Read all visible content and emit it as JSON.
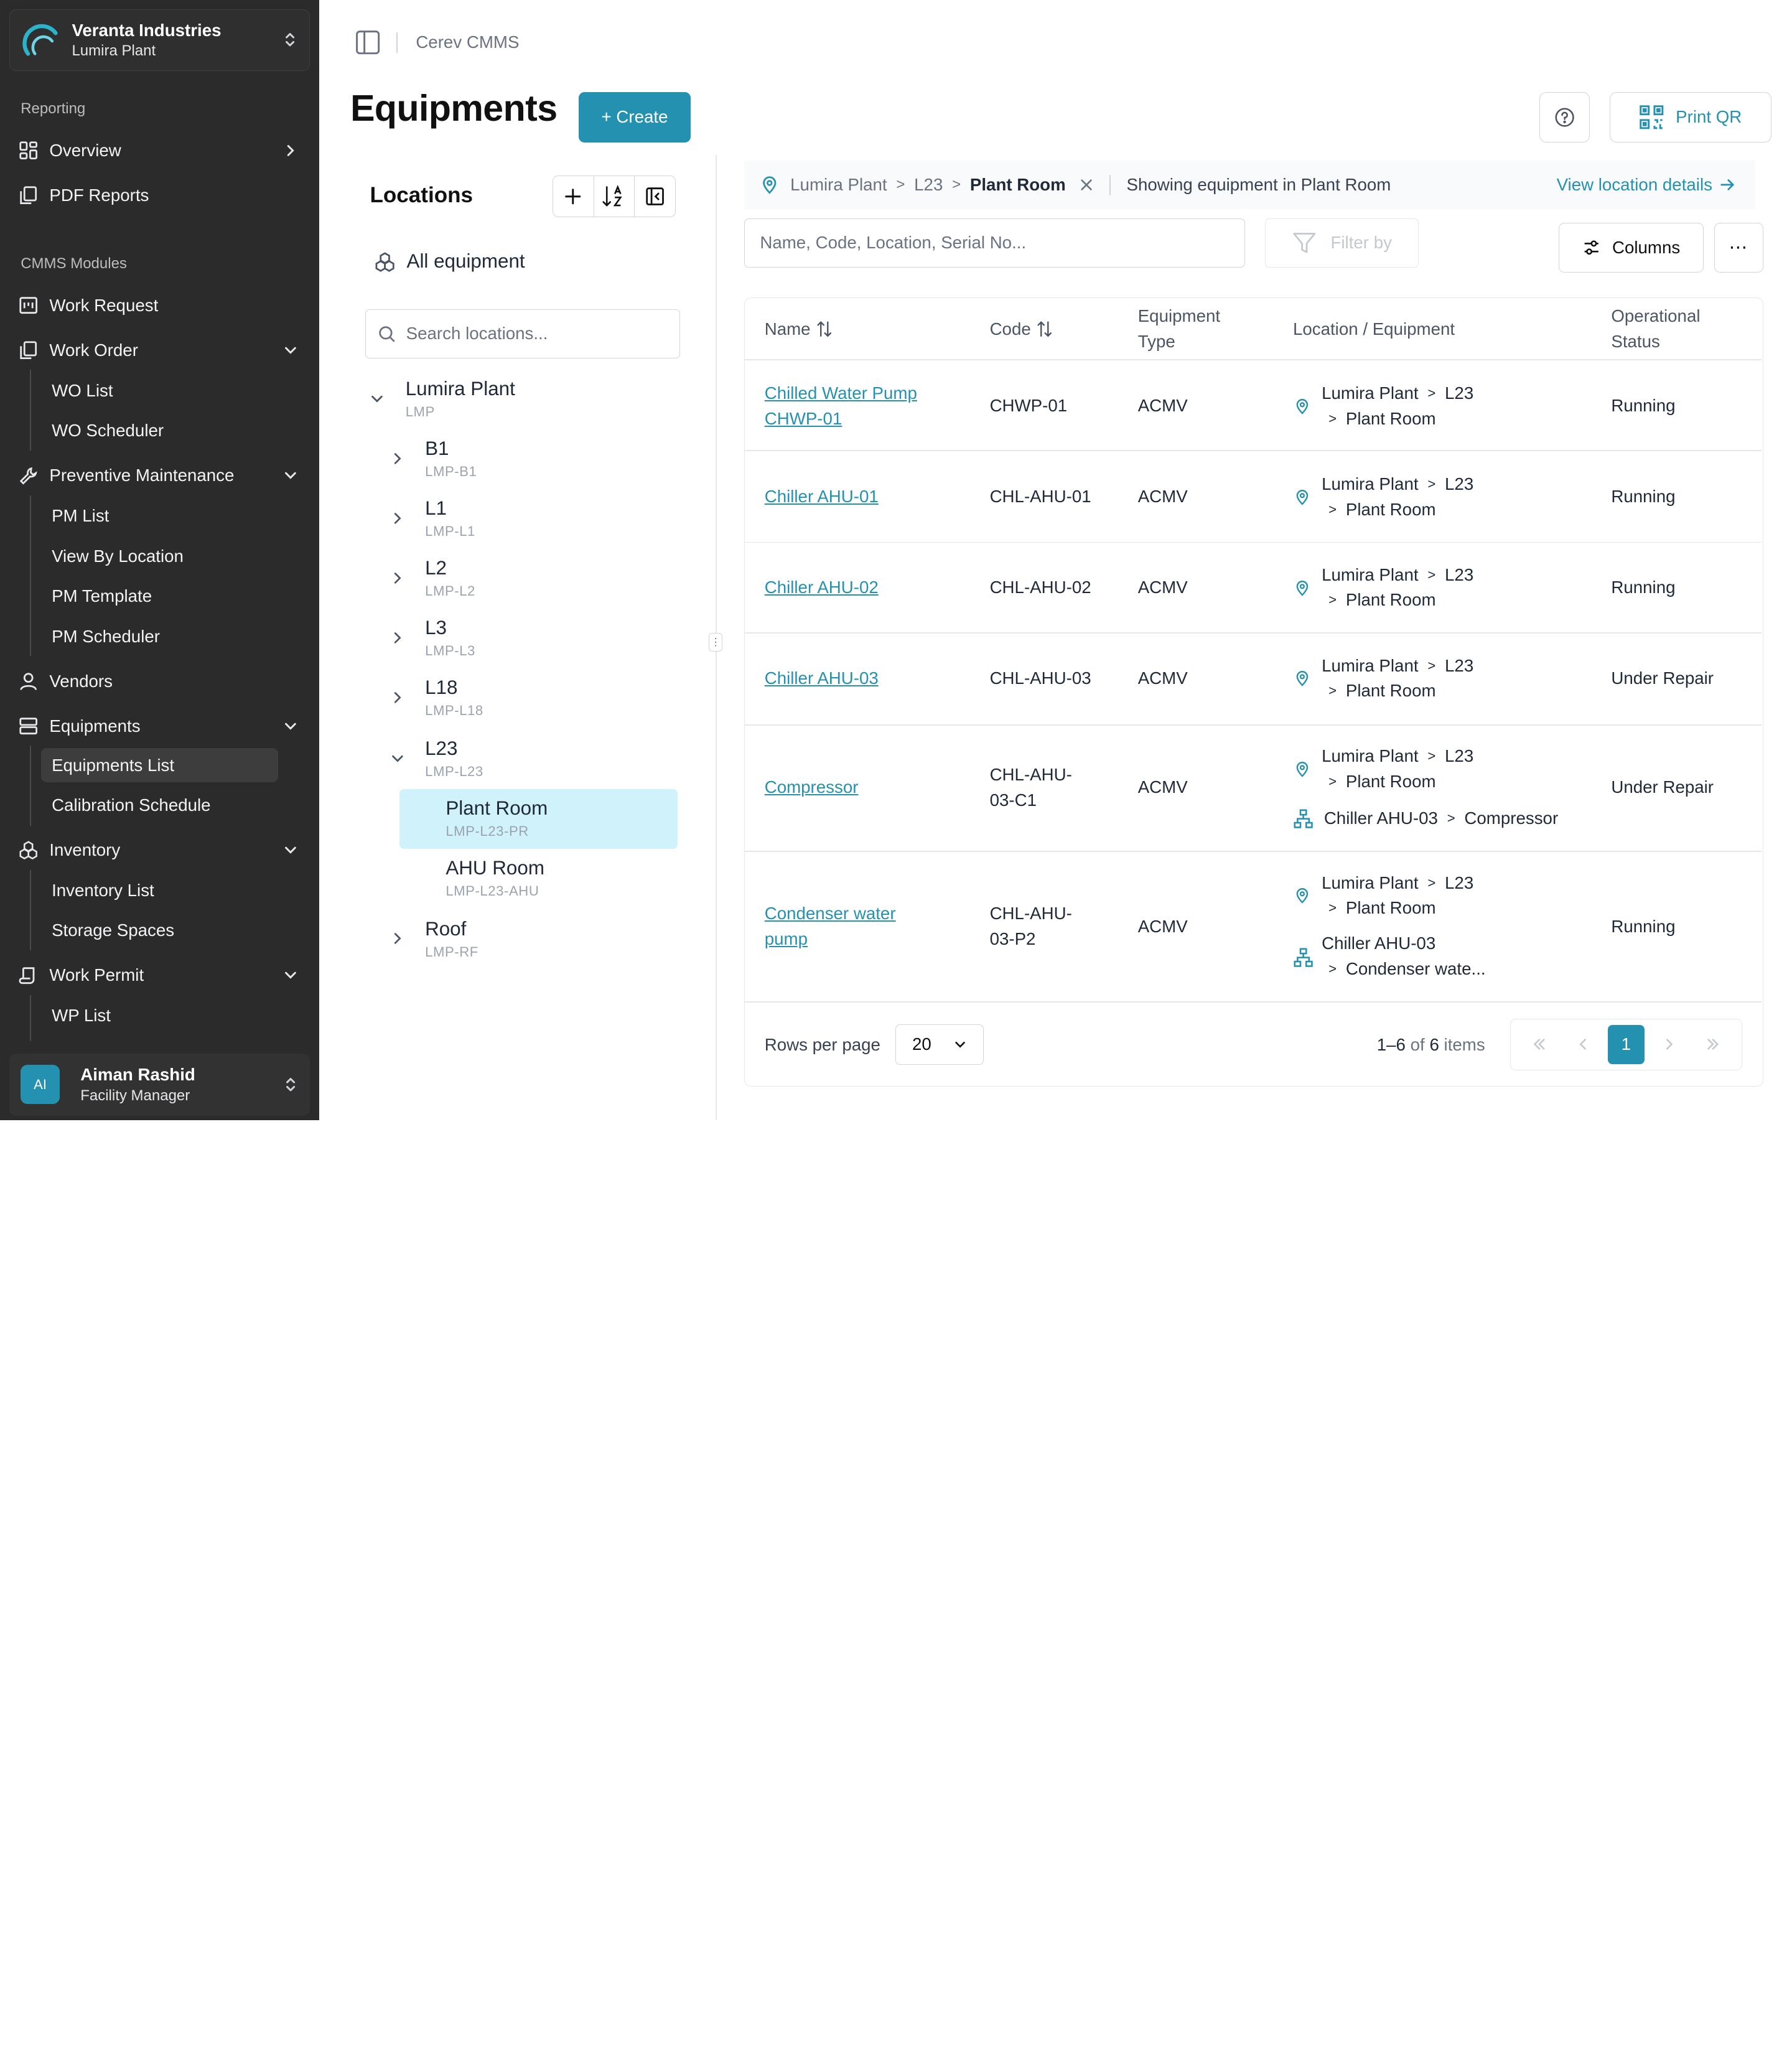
{
  "org": {
    "name": "Veranta Industries",
    "plant": "Lumira Plant"
  },
  "sidebar": {
    "reporting_label": "Reporting",
    "cmms_label": "CMMS Modules",
    "overview": "Overview",
    "pdf_reports": "PDF Reports",
    "work_request": "Work Request",
    "work_order": "Work Order",
    "wo_list": "WO List",
    "wo_scheduler": "WO Scheduler",
    "preventive_maintenance": "Preventive Maintenance",
    "pm_list": "PM List",
    "view_by_location": "View By Location",
    "pm_template": "PM Template",
    "pm_scheduler": "PM Scheduler",
    "vendors": "Vendors",
    "equipments": "Equipments",
    "equipments_list": "Equipments List",
    "calibration_schedule": "Calibration Schedule",
    "inventory": "Inventory",
    "inventory_list": "Inventory List",
    "storage_spaces": "Storage Spaces",
    "work_permit": "Work Permit",
    "wp_list": "WP List"
  },
  "user": {
    "initials": "AI",
    "name": "Aiman Rashid",
    "role": "Facility Manager"
  },
  "topbar": {
    "title": "Cerev CMMS"
  },
  "page": {
    "title": "Equipments",
    "create": "+ Create",
    "print_qr": "Print QR"
  },
  "locations": {
    "title": "Locations",
    "all_equipment": "All equipment",
    "search_placeholder": "Search locations...",
    "tree": {
      "root": {
        "name": "Lumira Plant",
        "code": "LMP"
      },
      "b1": {
        "name": "B1",
        "code": "LMP-B1"
      },
      "l1": {
        "name": "L1",
        "code": "LMP-L1"
      },
      "l2": {
        "name": "L2",
        "code": "LMP-L2"
      },
      "l3": {
        "name": "L3",
        "code": "LMP-L3"
      },
      "l18": {
        "name": "L18",
        "code": "LMP-L18"
      },
      "l23": {
        "name": "L23",
        "code": "LMP-L23"
      },
      "plant_room": {
        "name": "Plant Room",
        "code": "LMP-L23-PR"
      },
      "ahu_room": {
        "name": "AHU Room",
        "code": "LMP-L23-AHU"
      },
      "roof": {
        "name": "Roof",
        "code": "LMP-RF"
      }
    }
  },
  "breadcrumb": {
    "plant": "Lumira Plant",
    "level": "L23",
    "current": "Plant Room",
    "showing": "Showing equipment in Plant Room",
    "view_details": "View location details"
  },
  "search": {
    "placeholder": "Name, Code, Location, Serial No..."
  },
  "filter_label": "Filter by",
  "columns_label": "Columns",
  "more_label": "⋯",
  "table": {
    "headers": {
      "name": "Name",
      "code": "Code",
      "type_1": "Equipment",
      "type_2": "Type",
      "location": "Location / Equipment",
      "status_1": "Operational",
      "status_2": "Status"
    },
    "rows": [
      {
        "name_1": "Chilled Water Pump",
        "name_2": "CHWP-01",
        "code_1": "CHWP-01",
        "code_2": "",
        "type": "ACMV",
        "loc_plant": "Lumira Plant",
        "loc_level": "L23",
        "loc_room": "Plant Room",
        "status": "Running"
      },
      {
        "name_1": "Chiller AHU-01",
        "name_2": "",
        "code_1": "CHL-AHU-01",
        "code_2": "",
        "type": "ACMV",
        "loc_plant": "Lumira Plant",
        "loc_level": "L23",
        "loc_room": "Plant Room",
        "status": "Running"
      },
      {
        "name_1": "Chiller AHU-02",
        "name_2": "",
        "code_1": "CHL-AHU-02",
        "code_2": "",
        "type": "ACMV",
        "loc_plant": "Lumira Plant",
        "loc_level": "L23",
        "loc_room": "Plant Room",
        "status": "Running"
      },
      {
        "name_1": "Chiller AHU-03",
        "name_2": "",
        "code_1": "CHL-AHU-03",
        "code_2": "",
        "type": "ACMV",
        "loc_plant": "Lumira Plant",
        "loc_level": "L23",
        "loc_room": "Plant Room",
        "status": "Under Repair"
      },
      {
        "name_1": "Compressor",
        "name_2": "",
        "code_1": "CHL-AHU-",
        "code_2": "03-C1",
        "type": "ACMV",
        "loc_plant": "Lumira Plant",
        "loc_level": "L23",
        "loc_room": "Plant Room",
        "eq_parent": "Chiller AHU-03",
        "eq_child": "Compressor",
        "status": "Under Repair"
      },
      {
        "name_1": "Condenser water",
        "name_2": "pump",
        "code_1": "CHL-AHU-",
        "code_2": "03-P2",
        "type": "ACMV",
        "loc_plant": "Lumira Plant",
        "loc_level": "L23",
        "loc_room": "Plant Room",
        "eq_parent": "Chiller AHU-03",
        "eq_child": "Condenser wate...",
        "status": "Running"
      }
    ]
  },
  "pagination": {
    "rows_per_page_label": "Rows per page",
    "rows_per_page": "20",
    "range": "1–6",
    "of": "of",
    "total": "6",
    "items": "items",
    "current_page": "1"
  },
  "colors": {
    "accent": "#2591b0",
    "sidebar_bg": "#2b2b2b",
    "selected_bg": "#cff2fb"
  }
}
